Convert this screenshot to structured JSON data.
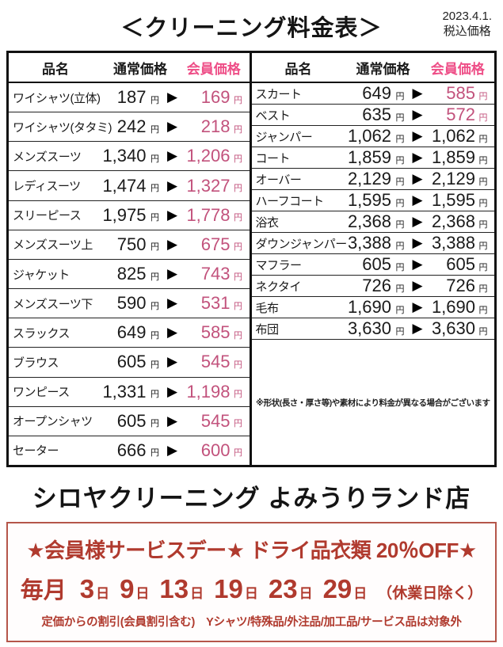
{
  "header": {
    "title": "＜クリーニング料金表＞",
    "date": "2023.4.1.",
    "tax_note": "税込価格"
  },
  "table": {
    "headers": {
      "item": "品名",
      "regular": "通常価格",
      "member": "会員価格"
    },
    "yen": "円",
    "arrow": "▶",
    "left_rows": [
      {
        "name": "ワイシャツ(立体)",
        "regular": "187",
        "member": "169",
        "discount": true
      },
      {
        "name": "ワイシャツ(タタミ)",
        "regular": "242",
        "member": "218",
        "discount": true
      },
      {
        "name": "メンズスーツ",
        "regular": "1,340",
        "member": "1,206",
        "discount": true
      },
      {
        "name": "レディスーツ",
        "regular": "1,474",
        "member": "1,327",
        "discount": true
      },
      {
        "name": "スリーピース",
        "regular": "1,975",
        "member": "1,778",
        "discount": true
      },
      {
        "name": "メンズスーツ上",
        "regular": "750",
        "member": "675",
        "discount": true
      },
      {
        "name": "ジャケット",
        "regular": "825",
        "member": "743",
        "discount": true
      },
      {
        "name": "メンズスーツ下",
        "regular": "590",
        "member": "531",
        "discount": true
      },
      {
        "name": "スラックス",
        "regular": "649",
        "member": "585",
        "discount": true
      },
      {
        "name": "ブラウス",
        "regular": "605",
        "member": "545",
        "discount": true
      },
      {
        "name": "ワンピース",
        "regular": "1,331",
        "member": "1,198",
        "discount": true
      },
      {
        "name": "オープンシャツ",
        "regular": "605",
        "member": "545",
        "discount": true
      },
      {
        "name": "セーター",
        "regular": "666",
        "member": "600",
        "discount": true
      }
    ],
    "right_rows": [
      {
        "name": "スカート",
        "regular": "649",
        "member": "585",
        "discount": true
      },
      {
        "name": "ベスト",
        "regular": "635",
        "member": "572",
        "discount": true
      },
      {
        "name": "ジャンパー",
        "regular": "1,062",
        "member": "1,062",
        "discount": false
      },
      {
        "name": "コート",
        "regular": "1,859",
        "member": "1,859",
        "discount": false
      },
      {
        "name": "オーバー",
        "regular": "2,129",
        "member": "2,129",
        "discount": false
      },
      {
        "name": "ハーフコート",
        "regular": "1,595",
        "member": "1,595",
        "discount": false
      },
      {
        "name": "浴衣",
        "regular": "2,368",
        "member": "2,368",
        "discount": false
      },
      {
        "name": "ダウンジャンパー",
        "regular": "3,388",
        "member": "3,388",
        "discount": false
      },
      {
        "name": "マフラー",
        "regular": "605",
        "member": "605",
        "discount": false
      },
      {
        "name": "ネクタイ",
        "regular": "726",
        "member": "726",
        "discount": false
      },
      {
        "name": "毛布",
        "regular": "1,690",
        "member": "1,690",
        "discount": false
      },
      {
        "name": "布団",
        "regular": "3,630",
        "member": "3,630",
        "discount": false
      }
    ],
    "note": "※形状(長さ・厚さ等)や素材により料金が異なる場合がございます"
  },
  "footer": {
    "store_name": "シロヤクリーニング よみうりランド店",
    "promo": {
      "headline": "★会員様サービスデー★ ドライ品衣類 20％OFF★",
      "schedule_prefix": "毎月",
      "days": [
        "3",
        "9",
        "13",
        "19",
        "23",
        "29"
      ],
      "day_suffix": "日",
      "schedule_note": "（休業日除く）",
      "conditions": "定価からの割引(会員割引含む)　Yシャツ/特殊品/外注品/加工品/サービス品は対象外"
    }
  },
  "colors": {
    "member_pink": "#c2527c",
    "header_pink": "#ee4e87",
    "promo_red": "#b03a2e",
    "border_black": "#111111"
  }
}
